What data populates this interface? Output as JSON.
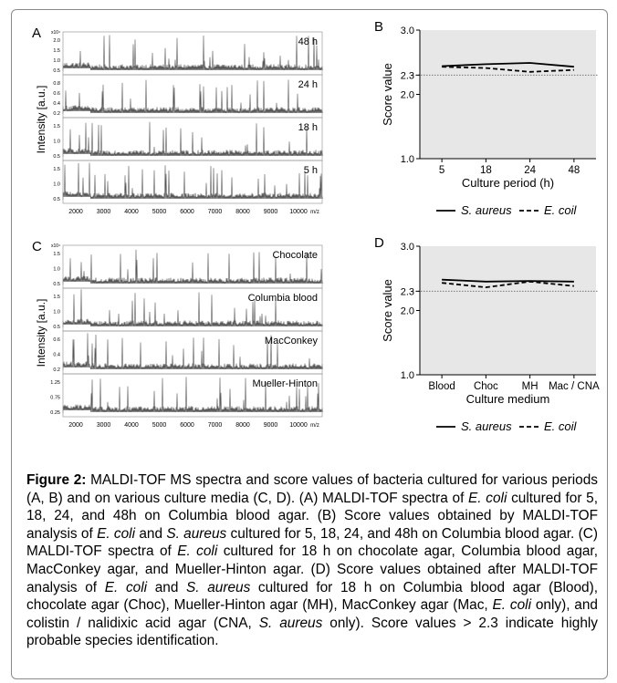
{
  "panels": {
    "a": {
      "letter": "A",
      "ylabel": "Intensity [a.u.]",
      "scale_label": "x10⁴",
      "unit": "m/z",
      "x_ticks": [
        "2000",
        "3000",
        "4000",
        "5000",
        "6000",
        "7000",
        "8000",
        "9000",
        "10000"
      ],
      "strips": [
        {
          "label": "48 h",
          "ticks": [
            "2.0",
            "1.5",
            "1.0",
            "0.5"
          ]
        },
        {
          "label": "24 h",
          "ticks": [
            "0.8",
            "0.6",
            "0.4",
            "0.2"
          ]
        },
        {
          "label": "18 h",
          "ticks": [
            "1.5",
            "1.0",
            "0.5"
          ]
        },
        {
          "label": "5 h",
          "ticks": [
            "1.5",
            "1.0",
            "0.5"
          ]
        }
      ]
    },
    "c": {
      "letter": "C",
      "ylabel": "Intensity [a.u.]",
      "scale_label": "x10⁴",
      "unit": "m/z",
      "x_ticks": [
        "2000",
        "3000",
        "4000",
        "5000",
        "6000",
        "7000",
        "8000",
        "9000",
        "10000"
      ],
      "strips": [
        {
          "label": "Chocolate",
          "ticks": [
            "1.5",
            "1.0",
            "0.5"
          ]
        },
        {
          "label": "Columbia blood",
          "ticks": [
            "1.5",
            "1.0",
            "0.5"
          ]
        },
        {
          "label": "MacConkey",
          "ticks": [
            "0.6",
            "0.4",
            "0.2"
          ]
        },
        {
          "label": "Mueller-Hinton",
          "ticks": [
            "1.25",
            "0.75",
            "0.25"
          ]
        }
      ]
    }
  },
  "chart_data": [
    {
      "type": "line",
      "panel": "B",
      "xlabel": "Culture period (h)",
      "ylabel": "Score value",
      "categories": [
        "5",
        "18",
        "24",
        "48"
      ],
      "y_ticks": [
        "3.0",
        "2.3",
        "2.0",
        "1.0"
      ],
      "ylim": [
        1.0,
        3.0
      ],
      "threshold": 2.3,
      "series": [
        {
          "name": "S. aureus",
          "values": [
            2.44,
            2.47,
            2.49,
            2.43
          ],
          "dash": "solid"
        },
        {
          "name": "E. coil",
          "values": [
            2.43,
            2.41,
            2.35,
            2.38
          ],
          "dash": "dashed"
        }
      ],
      "legend_position": "bottom",
      "grid": false,
      "background": "#e7e7e7"
    },
    {
      "type": "line",
      "panel": "D",
      "xlabel": "Culture medium",
      "ylabel": "Score value",
      "categories": [
        "Blood",
        "Choc",
        "MH",
        "Mac / CNA"
      ],
      "y_ticks": [
        "3.0",
        "2.3",
        "2.0",
        "1.0"
      ],
      "ylim": [
        1.0,
        3.0
      ],
      "threshold": 2.3,
      "series": [
        {
          "name": "S. aureus",
          "values": [
            2.48,
            2.45,
            2.46,
            2.45
          ],
          "dash": "solid"
        },
        {
          "name": "E. coil",
          "values": [
            2.43,
            2.36,
            2.45,
            2.38
          ],
          "dash": "dashed"
        }
      ],
      "legend_position": "bottom",
      "grid": false,
      "background": "#e7e7e7"
    }
  ],
  "caption": {
    "title": "Figure 2:",
    "body": [
      {
        "t": " MALDI-TOF MS spectra and score values of bacteria cultured for various periods (A, B) and on various culture media (C, D). (A) MALDI-TOF spectra of "
      },
      {
        "t": "E. coli",
        "i": true
      },
      {
        "t": " cultured for 5, 18, 24, and 48h on Columbia blood agar. (B) Score values obtained by MALDI-TOF analysis of "
      },
      {
        "t": "E. coli",
        "i": true
      },
      {
        "t": " and "
      },
      {
        "t": "S. aureus",
        "i": true
      },
      {
        "t": " cultured for 5, 18, 24, and 48h on Columbia blood agar. (C) MALDI-TOF spectra of "
      },
      {
        "t": "E. coli",
        "i": true
      },
      {
        "t": " cultured for 18 h on chocolate agar, Columbia blood agar, MacConkey agar, and Mueller-Hinton agar. (D) Score values obtained after MALDI-TOF analysis of "
      },
      {
        "t": "E. coli",
        "i": true
      },
      {
        "t": " and "
      },
      {
        "t": "S. aureus",
        "i": true
      },
      {
        "t": " cultured for 18 h on Columbia blood agar (Blood), chocolate agar (Choc), Mueller-Hinton agar (MH), MacConkey agar (Mac, "
      },
      {
        "t": "E. coli",
        "i": true
      },
      {
        "t": " only), and colistin / nalidixic acid agar (CNA, "
      },
      {
        "t": "S. aureus",
        "i": true
      },
      {
        "t": " only). Score values > 2.3 indicate highly probable species identification."
      }
    ]
  }
}
